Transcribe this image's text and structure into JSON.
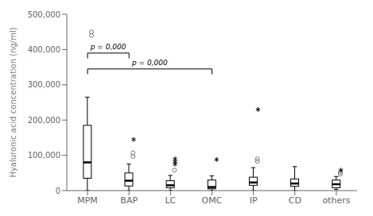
{
  "chart_data": {
    "type": "box",
    "ylabel": "Hyaluronic acid concentration (ng/ml)",
    "categories": [
      "MPM",
      "BAP",
      "LC",
      "OMC",
      "IP",
      "CD",
      "others"
    ],
    "boxes": [
      {
        "q1": 35000,
        "median": 80000,
        "q3": 185000,
        "whislo": 0,
        "whishi": 265000,
        "fliers": [
          {
            "marker": "circle",
            "values": [
              450000,
              440000
            ]
          },
          {
            "marker": "star",
            "values": []
          }
        ]
      },
      {
        "q1": 13000,
        "median": 28000,
        "q3": 50000,
        "whislo": 0,
        "whishi": 75000,
        "fliers": [
          {
            "marker": "circle",
            "values": [
              97000,
              107000
            ]
          },
          {
            "marker": "star",
            "values": [
              145000
            ]
          }
        ]
      },
      {
        "q1": 8000,
        "median": 15000,
        "q3": 28000,
        "whislo": 0,
        "whishi": 43000,
        "fliers": [
          {
            "marker": "circle",
            "values": [
              58000
            ]
          },
          {
            "marker": "star",
            "values": [
              75000,
              82000,
              90000
            ]
          }
        ]
      },
      {
        "q1": 5000,
        "median": 10000,
        "q3": 30000,
        "whislo": 0,
        "whishi": 42000,
        "fliers": [
          {
            "marker": "circle",
            "values": []
          },
          {
            "marker": "star",
            "values": [
              88000
            ]
          }
        ]
      },
      {
        "q1": 15000,
        "median": 23000,
        "q3": 38000,
        "whislo": 0,
        "whishi": 65000,
        "fliers": [
          {
            "marker": "circle",
            "values": [
              83000,
              90000
            ]
          },
          {
            "marker": "star",
            "values": [
              230000
            ]
          }
        ]
      },
      {
        "q1": 12000,
        "median": 20000,
        "q3": 33000,
        "whislo": 0,
        "whishi": 68000,
        "fliers": [
          {
            "marker": "circle",
            "values": []
          },
          {
            "marker": "star",
            "values": []
          }
        ]
      },
      {
        "q1": 8000,
        "median": 18000,
        "q3": 30000,
        "whislo": 3000,
        "whishi": 40000,
        "fliers": [
          {
            "marker": "circle",
            "values": [
              47000,
              52000
            ]
          },
          {
            "marker": "star",
            "values": [
              58000
            ]
          }
        ]
      }
    ],
    "ylim": [
      0,
      500000
    ],
    "yticks": [
      0,
      {
        "value": 100000,
        "label": "100,000"
      },
      {
        "value": 200000,
        "label": "200,000"
      },
      {
        "value": 300000,
        "label": "300,000"
      },
      {
        "value": 400000,
        "label": "400,000"
      },
      {
        "value": 500000,
        "label": "500,000"
      }
    ],
    "annotations": [
      {
        "from": "MPM",
        "to": "BAP",
        "y": 390000,
        "label": "p = 0,000"
      },
      {
        "from": "MPM",
        "to": "OMC",
        "y": 345000,
        "label": "p = 0,000"
      }
    ]
  }
}
